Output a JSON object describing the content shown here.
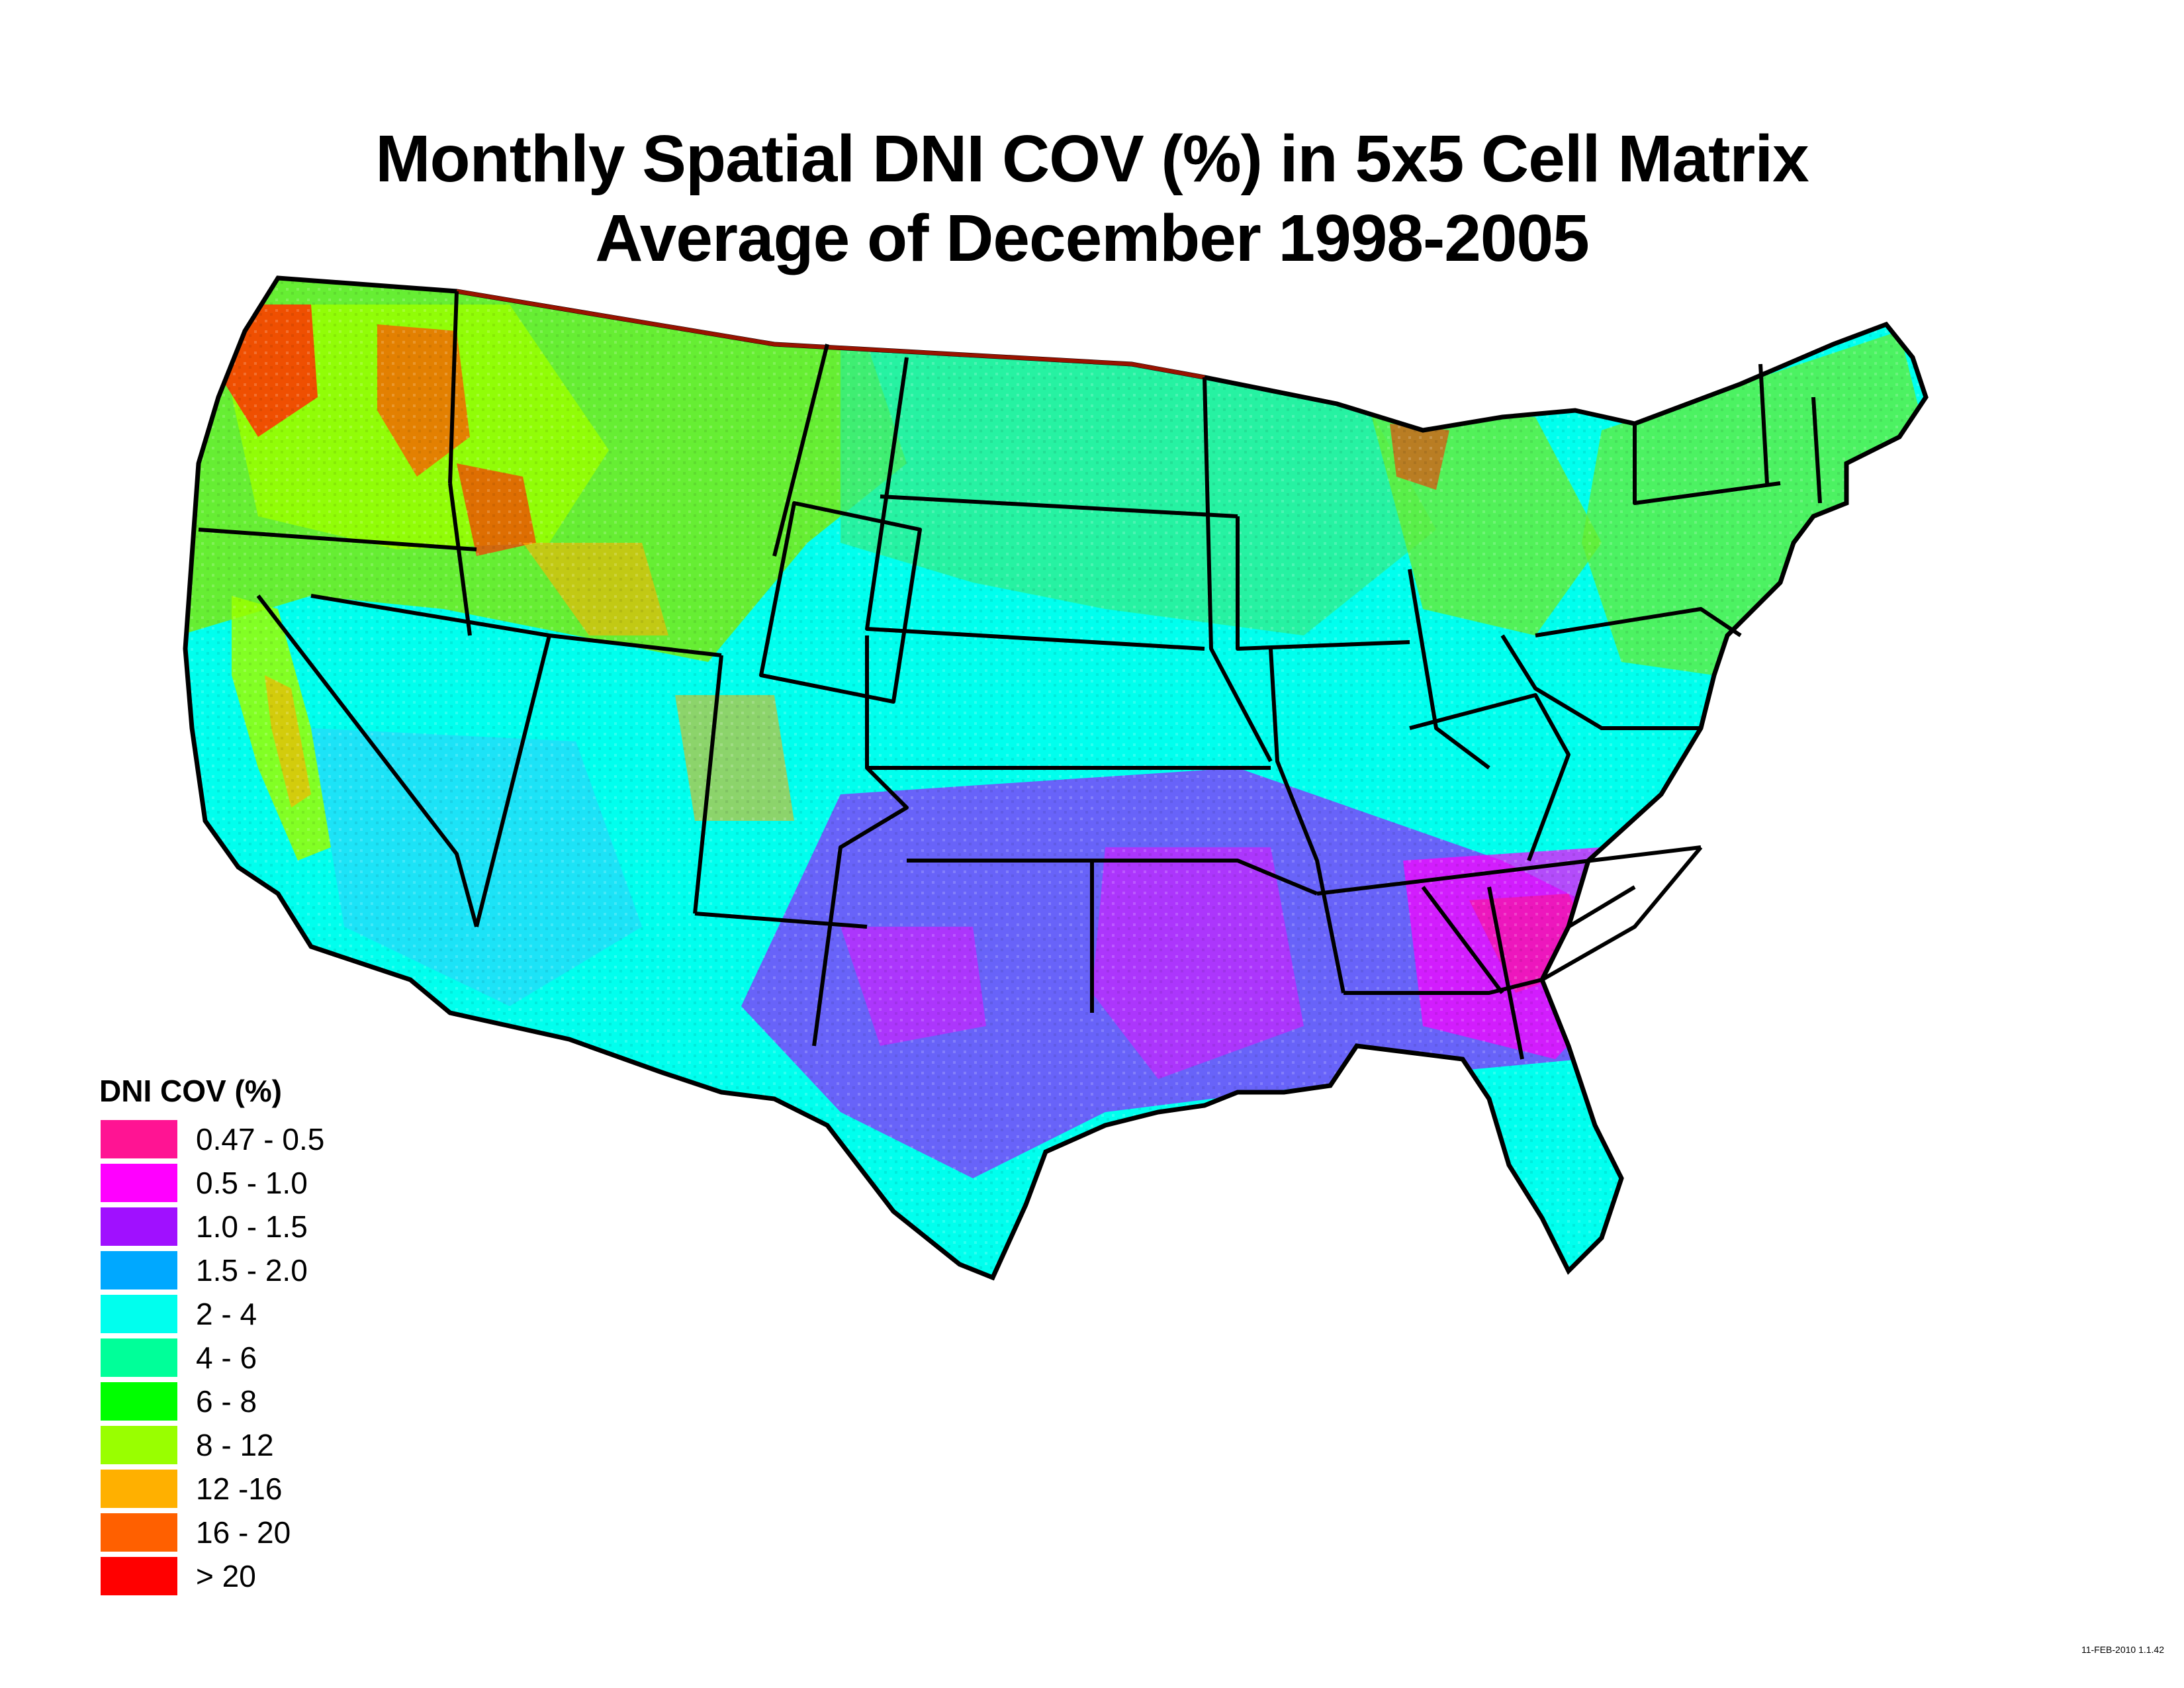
{
  "title": {
    "line1": "Monthly Spatial DNI COV (%) in 5x5 Cell Matrix",
    "line2": "Average of December 1998-2005"
  },
  "map": {
    "region": "Contiguous United States",
    "borders_color": "#000000"
  },
  "legend": {
    "title": "DNI COV (%)",
    "items": [
      {
        "label": "0.47 - 0.5",
        "color": "#ff1493"
      },
      {
        "label": "0.5 - 1.0",
        "color": "#ff00ff"
      },
      {
        "label": "1.0 - 1.5",
        "color": "#a010ff"
      },
      {
        "label": "1.5 - 2.0",
        "color": "#00a8ff"
      },
      {
        "label": "2 - 4",
        "color": "#00ffee"
      },
      {
        "label": "4 - 6",
        "color": "#00ff99"
      },
      {
        "label": "6 - 8",
        "color": "#00ff00"
      },
      {
        "label": "8 - 12",
        "color": "#99ff00"
      },
      {
        "label": "12 -16",
        "color": "#ffb000"
      },
      {
        "label": "16 - 20",
        "color": "#ff6000"
      },
      {
        "label": "> 20",
        "color": "#ff0000"
      }
    ]
  },
  "stamp": "11-FEB-2010 1.1.42"
}
